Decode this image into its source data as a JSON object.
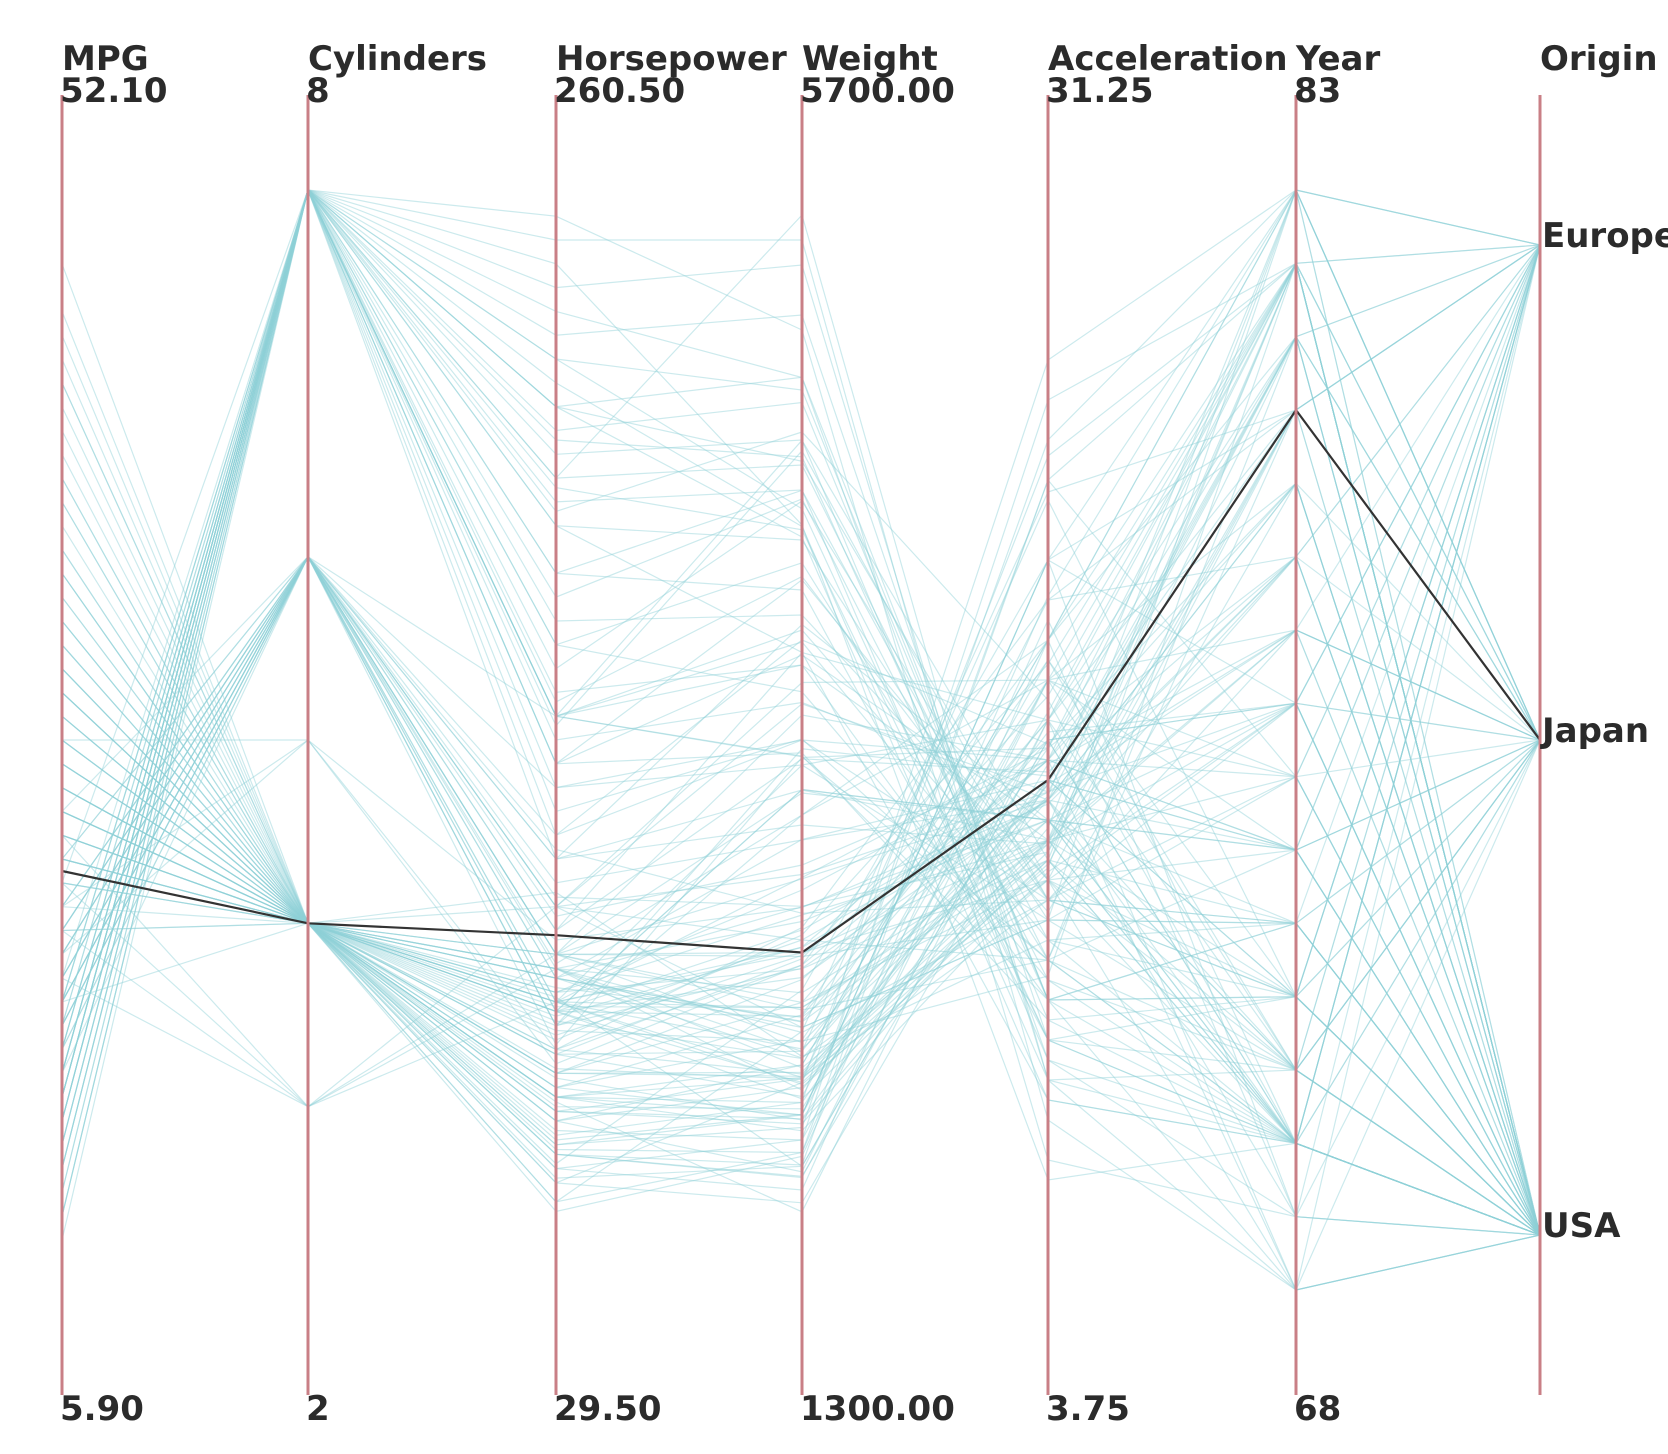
{
  "chart_data": {
    "type": "parallel-coordinates",
    "axes": [
      {
        "name": "MPG",
        "max_label": "52.10",
        "min_label": "5.90",
        "min": 5.9,
        "max": 52.1
      },
      {
        "name": "Cylinders",
        "max_label": "8",
        "min_label": "2",
        "min": 2,
        "max": 8
      },
      {
        "name": "Horsepower",
        "max_label": "260.50",
        "min_label": "29.50",
        "min": 29.5,
        "max": 260.5
      },
      {
        "name": "Weight",
        "max_label": "5700.00",
        "min_label": "1300.00",
        "min": 1300,
        "max": 5700
      },
      {
        "name": "Acceleration",
        "max_label": "31.25",
        "min_label": "3.75",
        "min": 3.75,
        "max": 31.25
      },
      {
        "name": "Year",
        "max_label": "83",
        "min_label": "68",
        "min": 68,
        "max": 83
      },
      {
        "name": "Origin",
        "categories": [
          "Europe",
          "Japan",
          "USA"
        ]
      }
    ],
    "highlighted_record": {
      "MPG": 23.5,
      "Cylinders": 4,
      "Horsepower": 104,
      "Weight": 2650,
      "Acceleration": 16.5,
      "Year": 80,
      "Origin": "Japan"
    },
    "records": [
      [
        18,
        8,
        130,
        3504,
        12,
        70,
        "USA"
      ],
      [
        15,
        8,
        165,
        3693,
        11.5,
        70,
        "USA"
      ],
      [
        18,
        8,
        150,
        3436,
        11,
        70,
        "USA"
      ],
      [
        16,
        8,
        150,
        3433,
        12,
        70,
        "USA"
      ],
      [
        17,
        8,
        140,
        3449,
        10.5,
        70,
        "USA"
      ],
      [
        15,
        8,
        198,
        4341,
        10,
        70,
        "USA"
      ],
      [
        14,
        8,
        220,
        4354,
        9,
        70,
        "USA"
      ],
      [
        14,
        8,
        215,
        4312,
        8.5,
        70,
        "USA"
      ],
      [
        14,
        8,
        225,
        4425,
        10,
        70,
        "USA"
      ],
      [
        15,
        8,
        190,
        3850,
        8.5,
        70,
        "USA"
      ],
      [
        24,
        4,
        95,
        2372,
        15,
        70,
        "Japan"
      ],
      [
        22,
        6,
        95,
        2833,
        15.5,
        70,
        "USA"
      ],
      [
        18,
        6,
        97,
        2774,
        15.5,
        70,
        "USA"
      ],
      [
        21,
        6,
        85,
        2587,
        16,
        70,
        "USA"
      ],
      [
        27,
        4,
        88,
        2130,
        14.5,
        70,
        "Japan"
      ],
      [
        26,
        4,
        46,
        1835,
        20.5,
        70,
        "Europe"
      ],
      [
        25,
        4,
        87,
        2672,
        17.5,
        70,
        "Europe"
      ],
      [
        24,
        4,
        90,
        2430,
        14.5,
        70,
        "Europe"
      ],
      [
        25,
        4,
        95,
        2375,
        17.5,
        70,
        "Europe"
      ],
      [
        26,
        4,
        113,
        2234,
        12.5,
        70,
        "Europe"
      ],
      [
        21,
        6,
        90,
        2648,
        15,
        70,
        "USA"
      ],
      [
        10,
        8,
        215,
        4615,
        14,
        70,
        "USA"
      ],
      [
        9,
        8,
        193,
        4732,
        18.5,
        70,
        "USA"
      ],
      [
        27,
        4,
        90,
        2264,
        15.5,
        71,
        "Japan"
      ],
      [
        28,
        4,
        88,
        2065,
        14.5,
        71,
        "Europe"
      ],
      [
        25,
        4,
        95,
        2228,
        14,
        71,
        "Japan"
      ],
      [
        19,
        6,
        100,
        2634,
        13,
        71,
        "USA"
      ],
      [
        16,
        6,
        100,
        2945,
        16,
        71,
        "USA"
      ],
      [
        17,
        6,
        88,
        3302,
        15.5,
        71,
        "USA"
      ],
      [
        14,
        8,
        165,
        4209,
        12,
        71,
        "USA"
      ],
      [
        13,
        8,
        175,
        4464,
        11.5,
        71,
        "USA"
      ],
      [
        30,
        4,
        79,
        2074,
        19.5,
        71,
        "Europe"
      ],
      [
        31,
        4,
        65,
        1773,
        19,
        71,
        "Japan"
      ],
      [
        35,
        4,
        69,
        1613,
        18,
        71,
        "Japan"
      ],
      [
        22,
        4,
        86,
        2226,
        16.5,
        72,
        "USA"
      ],
      [
        21,
        4,
        72,
        2401,
        19.5,
        72,
        "USA"
      ],
      [
        13,
        8,
        208,
        4633,
        11,
        72,
        "USA"
      ],
      [
        12,
        8,
        160,
        4456,
        13.5,
        72,
        "USA"
      ],
      [
        23,
        4,
        97,
        2254,
        23.5,
        72,
        "Europe"
      ],
      [
        28,
        4,
        80,
        2164,
        15,
        72,
        "Europe"
      ],
      [
        27,
        4,
        97,
        2100,
        16.5,
        72,
        "Japan"
      ],
      [
        24,
        4,
        90,
        2123,
        14,
        72,
        "Europe"
      ],
      [
        19,
        3,
        97,
        2330,
        13.5,
        72,
        "Japan"
      ],
      [
        15,
        8,
        150,
        3892,
        12.5,
        72,
        "USA"
      ],
      [
        13,
        8,
        180,
        4499,
        12.5,
        73,
        "USA"
      ],
      [
        12,
        8,
        215,
        4951,
        11,
        73,
        "USA"
      ],
      [
        14,
        8,
        150,
        4699,
        14.5,
        73,
        "USA"
      ],
      [
        18,
        6,
        100,
        3288,
        15.5,
        73,
        "USA"
      ],
      [
        20,
        6,
        95,
        3102,
        16.5,
        74,
        "USA"
      ],
      [
        26,
        4,
        93,
        2391,
        15.5,
        74,
        "Europe"
      ],
      [
        31,
        4,
        52,
        1649,
        16.5,
        74,
        "Japan"
      ],
      [
        32,
        4,
        61,
        2003,
        19,
        74,
        "Japan"
      ],
      [
        29,
        4,
        75,
        2171,
        16,
        74,
        "Japan"
      ],
      [
        25,
        4,
        75,
        2542,
        17,
        74,
        "Europe"
      ],
      [
        16,
        8,
        140,
        4141,
        14,
        74,
        "USA"
      ],
      [
        19,
        6,
        88,
        3302,
        15.5,
        74,
        "USA"
      ],
      [
        23,
        4,
        83,
        2639,
        17,
        75,
        "Europe"
      ],
      [
        24,
        4,
        97,
        2489,
        15,
        75,
        "Japan"
      ],
      [
        15,
        6,
        110,
        3730,
        19,
        75,
        "USA"
      ],
      [
        29,
        4,
        70,
        1937,
        14.2,
        76,
        "Europe"
      ],
      [
        33,
        4,
        53,
        1795,
        17.5,
        76,
        "Japan"
      ],
      [
        26,
        4,
        79,
        2255,
        17.7,
        76,
        "USA"
      ],
      [
        28,
        4,
        75,
        2155,
        14.9,
        76,
        "USA"
      ],
      [
        14,
        8,
        148,
        4657,
        13.5,
        75,
        "USA"
      ],
      [
        16,
        8,
        120,
        3962,
        15.5,
        76,
        "USA"
      ],
      [
        30,
        4,
        67,
        1985,
        16.4,
        77,
        "Japan"
      ],
      [
        36,
        4,
        58,
        1755,
        16.9,
        77,
        "Japan"
      ],
      [
        25,
        4,
        89,
        2430,
        14.9,
        77,
        "Europe"
      ],
      [
        21,
        6,
        110,
        2962,
        16.2,
        77,
        "Japan"
      ],
      [
        19,
        6,
        105,
        3425,
        16.7,
        78,
        "USA"
      ],
      [
        17,
        8,
        140,
        3840,
        15.4,
        78,
        "USA"
      ],
      [
        32,
        4,
        70,
        2050,
        17.3,
        78,
        "Japan"
      ],
      [
        43,
        4,
        48,
        2335,
        23.7,
        80,
        "Europe"
      ],
      [
        36,
        4,
        88,
        2740,
        16.2,
        81,
        "Japan"
      ],
      [
        37,
        4,
        68,
        2025,
        18.2,
        82,
        "Japan"
      ],
      [
        38,
        4,
        67,
        1965,
        15,
        82,
        "Japan"
      ],
      [
        44,
        4,
        52,
        2130,
        24.6,
        82,
        "Europe"
      ],
      [
        32,
        4,
        84,
        2295,
        11.6,
        82,
        "USA"
      ],
      [
        28,
        4,
        79,
        2625,
        18.6,
        82,
        "USA"
      ],
      [
        31,
        4,
        82,
        2720,
        19.4,
        82,
        "USA"
      ],
      [
        27,
        4,
        90,
        2950,
        17.3,
        82,
        "USA"
      ],
      [
        34,
        4,
        88,
        2395,
        18,
        82,
        "USA"
      ],
      [
        41,
        4,
        76,
        2144,
        14.7,
        80,
        "Europe"
      ],
      [
        46,
        4,
        65,
        2110,
        14.4,
        80,
        "Japan"
      ],
      [
        40,
        4,
        67,
        2145,
        16.4,
        81,
        "Japan"
      ],
      [
        24,
        6,
        120,
        3160,
        14.9,
        81,
        "Europe"
      ],
      [
        20,
        5,
        103,
        2830,
        15.9,
        78,
        "Europe"
      ],
      [
        17,
        6,
        85,
        3465,
        16.6,
        81,
        "USA"
      ],
      [
        26,
        4,
        92,
        2585,
        14.5,
        82,
        "USA"
      ],
      [
        22,
        6,
        112,
        2835,
        14.7,
        82,
        "USA"
      ],
      [
        18,
        6,
        81,
        3430,
        17.3,
        81,
        "USA"
      ],
      [
        13,
        8,
        150,
        3940,
        13.2,
        79,
        "USA"
      ],
      [
        23,
        8,
        125,
        3900,
        17.4,
        79,
        "USA"
      ],
      [
        28,
        4,
        90,
        2670,
        16,
        79,
        "USA"
      ],
      [
        20,
        6,
        122,
        2807,
        13.5,
        73,
        "Japan"
      ],
      [
        11,
        8,
        153,
        4154,
        13.5,
        73,
        "USA"
      ],
      [
        33,
        4,
        91,
        1795,
        17.5,
        76,
        "Japan"
      ],
      [
        18,
        6,
        110,
        3645,
        16.2,
        76,
        "USA"
      ],
      [
        30,
        4,
        97,
        2189,
        14.3,
        83,
        "Japan"
      ],
      [
        34,
        4,
        74,
        1980,
        15.3,
        83,
        "Japan"
      ],
      [
        27,
        4,
        100,
        2290,
        16.1,
        83,
        "Europe"
      ],
      [
        39,
        4,
        59,
        1850,
        21.1,
        83,
        "Europe"
      ],
      [
        15,
        8,
        245,
        4360,
        6.5,
        70,
        "USA"
      ],
      [
        12,
        8,
        255,
        5140,
        7,
        69,
        "USA"
      ],
      [
        10,
        8,
        250,
        5500,
        8,
        68,
        "USA"
      ],
      [
        9,
        8,
        200,
        5600,
        9,
        68,
        "USA"
      ],
      [
        11,
        8,
        235,
        4950,
        9.5,
        69,
        "USA"
      ],
      [
        14,
        8,
        210,
        4850,
        11,
        68,
        "USA"
      ],
      [
        16,
        6,
        105,
        3850,
        18,
        68,
        "USA"
      ],
      [
        22,
        6,
        98,
        3200,
        20,
        69,
        "USA"
      ],
      [
        18,
        4,
        92,
        2900,
        17,
        68,
        "Europe"
      ],
      [
        24,
        4,
        88,
        2550,
        16,
        69,
        "Europe"
      ],
      [
        21,
        4,
        100,
        2650,
        14,
        68,
        "Japan"
      ],
      [
        27,
        4,
        72,
        2000,
        22,
        69,
        "Japan"
      ],
      [
        47,
        4,
        62,
        2050,
        27,
        83,
        "Europe"
      ],
      [
        49,
        4,
        55,
        1900,
        26,
        82,
        "Europe"
      ],
      [
        45,
        4,
        60,
        1950,
        25,
        83,
        "Japan"
      ],
      [
        42,
        4,
        70,
        2000,
        22,
        83,
        "Japan"
      ],
      [
        40,
        4,
        58,
        1800,
        24,
        82,
        "USA"
      ],
      [
        37,
        4,
        65,
        2200,
        20,
        83,
        "USA"
      ],
      [
        8,
        8,
        240,
        5400,
        9,
        71,
        "USA"
      ],
      [
        9,
        8,
        230,
        5200,
        10,
        72,
        "USA"
      ],
      [
        11,
        8,
        225,
        4900,
        11,
        73,
        "USA"
      ],
      [
        13,
        8,
        200,
        4600,
        12,
        74,
        "USA"
      ],
      [
        12,
        8,
        190,
        4300,
        13,
        75,
        "USA"
      ],
      [
        14,
        8,
        170,
        4000,
        14,
        76,
        "USA"
      ],
      [
        16,
        8,
        155,
        3800,
        15,
        77,
        "USA"
      ],
      [
        18,
        8,
        145,
        3650,
        16,
        78,
        "USA"
      ],
      [
        19,
        8,
        135,
        3500,
        17,
        79,
        "USA"
      ],
      [
        21,
        6,
        120,
        3300,
        15,
        80,
        "USA"
      ],
      [
        24,
        6,
        115,
        3100,
        16,
        81,
        "USA"
      ],
      [
        26,
        6,
        108,
        3000,
        17,
        82,
        "USA"
      ],
      [
        22,
        5,
        80,
        2750,
        21,
        80,
        "Europe"
      ],
      [
        29,
        5,
        77,
        2600,
        20,
        81,
        "Europe"
      ],
      [
        36,
        4,
        56,
        2500,
        22,
        80,
        "Europe"
      ],
      [
        32,
        4,
        95,
        2350,
        13,
        83,
        "Japan"
      ],
      [
        30,
        4,
        110,
        2700,
        12,
        81,
        "Japan"
      ],
      [
        35,
        4,
        100,
        2450,
        14,
        80,
        "Japan"
      ],
      [
        25,
        3,
        100,
        2420,
        12,
        80,
        "Japan"
      ],
      [
        21,
        3,
        110,
        2350,
        13,
        73,
        "Japan"
      ],
      [
        23,
        3,
        90,
        2150,
        13.5,
        77,
        "Japan"
      ],
      [
        18,
        6,
        150,
        3800,
        11,
        72,
        "Europe"
      ],
      [
        20,
        6,
        135,
        3400,
        13,
        73,
        "Europe"
      ],
      [
        17,
        6,
        125,
        3500,
        13.5,
        76,
        "Europe"
      ],
      [
        31,
        4,
        48,
        1850,
        24,
        75,
        "Europe"
      ],
      [
        29,
        4,
        60,
        2000,
        22,
        76,
        "Europe"
      ],
      [
        26,
        4,
        70,
        2150,
        21,
        78,
        "Europe"
      ],
      [
        33,
        4,
        63,
        1900,
        19,
        79,
        "Japan"
      ],
      [
        39,
        4,
        58,
        1750,
        18,
        80,
        "Japan"
      ],
      [
        44,
        4,
        55,
        1700,
        20,
        82,
        "Japan"
      ],
      [
        15,
        8,
        180,
        4100,
        10,
        71,
        "USA"
      ],
      [
        13,
        8,
        195,
        4500,
        9.5,
        70,
        "USA"
      ],
      [
        11,
        8,
        205,
        4700,
        10.5,
        72,
        "USA"
      ],
      [
        17,
        6,
        100,
        3600,
        17,
        74,
        "USA"
      ],
      [
        19,
        6,
        90,
        3400,
        18,
        75,
        "USA"
      ],
      [
        20,
        6,
        85,
        3200,
        19,
        77,
        "USA"
      ],
      [
        23,
        4,
        92,
        2800,
        15,
        78,
        "USA"
      ],
      [
        25,
        4,
        85,
        2700,
        16,
        79,
        "USA"
      ],
      [
        27,
        4,
        80,
        2600,
        17,
        80,
        "USA"
      ],
      [
        29,
        4,
        75,
        2450,
        18,
        81,
        "USA"
      ],
      [
        31,
        4,
        72,
        2300,
        19,
        82,
        "USA"
      ],
      [
        34,
        4,
        70,
        2200,
        20,
        83,
        "USA"
      ]
    ]
  }
}
